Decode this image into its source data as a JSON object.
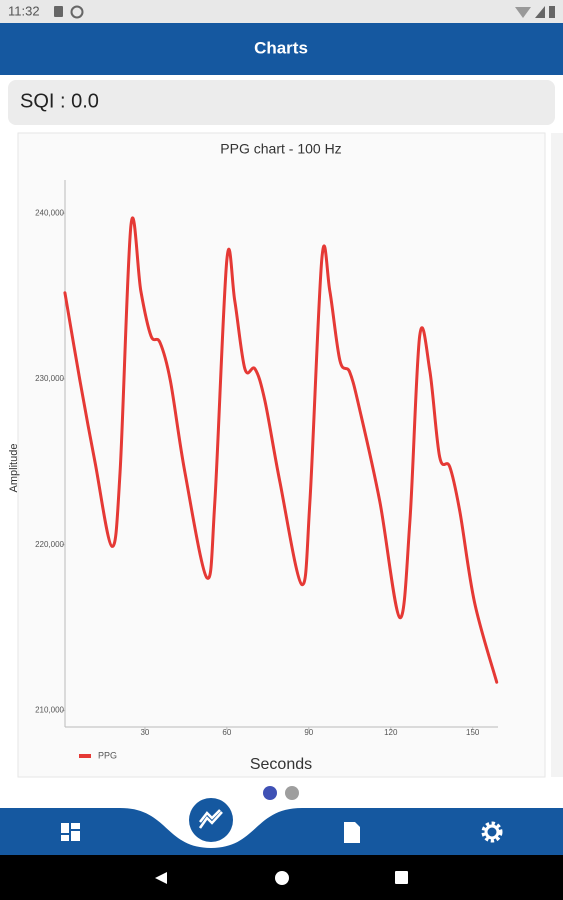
{
  "status_bar": {
    "time": "11:32"
  },
  "app_bar": {
    "title": "Charts"
  },
  "sqi": {
    "label": "SQI : 0.0"
  },
  "chart_data": {
    "type": "line",
    "title": "PPG chart - 100 Hz",
    "x_label": "Seconds",
    "y_label": "Amplitude",
    "x": [
      0.7,
      6.2,
      11.7,
      17.9,
      20.9,
      24.9,
      28.5,
      32.2,
      35.5,
      39.3,
      44.6,
      52.7,
      55.6,
      60,
      62.9,
      66.6,
      70.3,
      73.9,
      79.4,
      87.4,
      90.4,
      94.8,
      97.7,
      101.4,
      105,
      108.7,
      116,
      123.3,
      127,
      130.6,
      134.3,
      137.9,
      141.6,
      145.3,
      150.7,
      158.8
    ],
    "series": [
      {
        "name": "PPG",
        "color": "#e53935",
        "values": [
          235200,
          229900,
          225000,
          219900,
          224400,
          239300,
          235300,
          232600,
          232200,
          229900,
          224400,
          218000,
          222600,
          237200,
          234700,
          230600,
          230600,
          228700,
          223800,
          217600,
          222600,
          237300,
          235300,
          231100,
          230400,
          228100,
          222600,
          215600,
          221400,
          232600,
          230500,
          225300,
          224700,
          222000,
          216500,
          211700
        ]
      }
    ],
    "xlim": [
      0,
      160
    ],
    "ylim": [
      209000,
      242000
    ],
    "xticks": [
      30,
      60,
      90,
      120,
      150
    ],
    "yticks": [
      {
        "value": 210000,
        "label": "210,000"
      },
      {
        "value": 220000,
        "label": "220,000"
      },
      {
        "value": 230000,
        "label": "230,000"
      },
      {
        "value": 240000,
        "label": "240,000"
      }
    ],
    "legend": "bottom-left"
  }
}
